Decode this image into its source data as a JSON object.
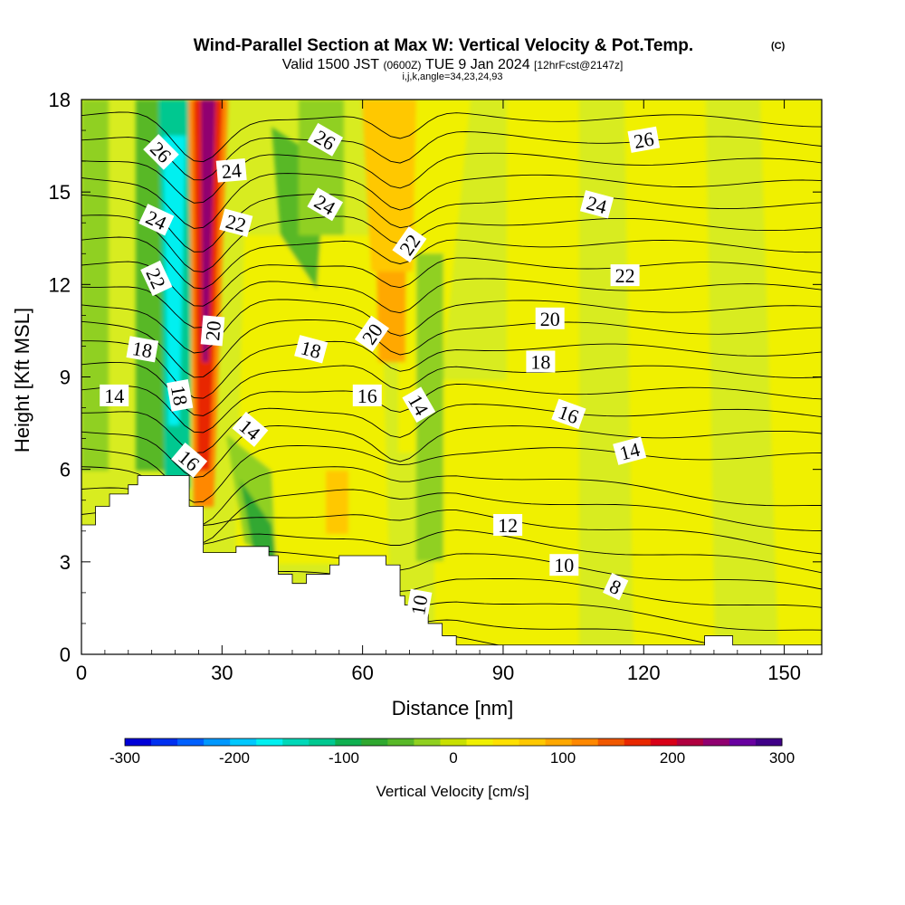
{
  "header": {
    "title_main": "Wind-Parallel Section at Max W: Vertical Velocity & Pot.Temp.",
    "title_badge": "(C)",
    "valid_prefix": "Valid 1500 JST",
    "valid_utc": "(0600Z)",
    "valid_date": "TUE 9 Jan 2024",
    "valid_fcst": "[12hrFcst@2147z]",
    "indices": "i,j,k,angle=34,23,24,93"
  },
  "colorbar": {
    "label": "Vertical Velocity [cm/s]",
    "tick_labels": [
      "-300",
      "-200",
      "-100",
      "0",
      "100",
      "200",
      "300"
    ],
    "tick_values": [
      -300,
      -200,
      -100,
      0,
      100,
      200,
      300
    ],
    "range": [
      -300,
      300
    ],
    "colors": [
      "#0000d8",
      "#0030f0",
      "#0060ff",
      "#0098ff",
      "#00c8ff",
      "#00f0f0",
      "#00d8b8",
      "#00c890",
      "#10b050",
      "#30a830",
      "#58b828",
      "#90d020",
      "#c8e000",
      "#f0f000",
      "#ffe000",
      "#ffc800",
      "#ffa800",
      "#ff8800",
      "#f05800",
      "#e82800",
      "#d80018",
      "#b00040",
      "#900070",
      "#6800a0",
      "#400088"
    ]
  },
  "chart_data": {
    "type": "heatmap",
    "title": "Wind-Parallel Section at Max W: Vertical Velocity & Pot.Temp.",
    "xlabel": "Distance [nm]",
    "ylabel": "Height [Kft MSL]",
    "xlim": [
      0,
      158
    ],
    "ylim": [
      0,
      18
    ],
    "x_ticks": [
      0,
      30,
      60,
      90,
      120,
      150
    ],
    "y_ticks": [
      0,
      3,
      6,
      9,
      12,
      15,
      18
    ],
    "x_tick_labels": [
      "0",
      "30",
      "60",
      "90",
      "120",
      "150"
    ],
    "y_tick_labels": [
      "0",
      "3",
      "6",
      "9",
      "12",
      "15",
      "18"
    ],
    "field": "Vertical Velocity [cm/s]",
    "contour_field": "Potential Temperature",
    "terrain_profile": {
      "x": [
        0,
        3,
        3,
        6,
        6,
        9,
        9,
        10,
        10,
        12,
        12,
        23,
        23,
        25,
        25,
        26,
        26,
        29,
        29,
        33,
        33,
        40,
        40,
        42,
        42,
        44,
        44,
        45,
        45,
        48,
        48,
        51,
        51,
        53,
        53,
        55,
        55,
        56,
        56,
        63,
        63,
        65,
        65,
        68,
        68,
        69,
        69,
        72,
        72,
        74,
        74,
        77,
        77,
        80,
        80,
        84,
        84,
        133,
        133,
        139,
        139,
        158
      ],
      "y": [
        4.2,
        4.2,
        4.8,
        4.8,
        5.2,
        5.2,
        5.2,
        5.2,
        5.5,
        5.5,
        5.8,
        5.8,
        4.8,
        4.8,
        4.8,
        4.8,
        3.3,
        3.3,
        3.3,
        3.3,
        3.5,
        3.5,
        3.2,
        3.2,
        2.6,
        2.6,
        2.6,
        2.6,
        2.3,
        2.3,
        2.6,
        2.6,
        2.6,
        2.6,
        2.9,
        2.9,
        3.2,
        3.2,
        3.2,
        3.2,
        3.2,
        3.2,
        2.9,
        2.9,
        1.9,
        1.9,
        1.6,
        1.6,
        1.3,
        1.3,
        1.0,
        1.0,
        0.6,
        0.6,
        0.3,
        0.3,
        0.3,
        0.3,
        0.6,
        0.6,
        0.3,
        0.3
      ]
    },
    "contour_labels": [
      {
        "text": "26",
        "x": 17,
        "y": 16.3,
        "angle": 45
      },
      {
        "text": "26",
        "x": 52,
        "y": 16.7,
        "angle": 30
      },
      {
        "text": "26",
        "x": 120,
        "y": 16.7,
        "angle": -10
      },
      {
        "text": "24",
        "x": 32,
        "y": 15.7,
        "angle": -5
      },
      {
        "text": "24",
        "x": 16,
        "y": 14.1,
        "angle": 25
      },
      {
        "text": "24",
        "x": 52,
        "y": 14.6,
        "angle": 30
      },
      {
        "text": "24",
        "x": 110,
        "y": 14.6,
        "angle": 15
      },
      {
        "text": "22",
        "x": 33,
        "y": 14.0,
        "angle": 15
      },
      {
        "text": "22",
        "x": 70,
        "y": 13.3,
        "angle": -55
      },
      {
        "text": "22",
        "x": 16,
        "y": 12.2,
        "angle": 65
      },
      {
        "text": "22",
        "x": 116,
        "y": 12.3,
        "angle": 0
      },
      {
        "text": "20",
        "x": 28,
        "y": 10.5,
        "angle": -85
      },
      {
        "text": "20",
        "x": 62,
        "y": 10.4,
        "angle": -55
      },
      {
        "text": "20",
        "x": 100,
        "y": 10.9,
        "angle": 0
      },
      {
        "text": "18",
        "x": 13,
        "y": 9.9,
        "angle": 10
      },
      {
        "text": "18",
        "x": 49,
        "y": 9.9,
        "angle": 15
      },
      {
        "text": "18",
        "x": 98,
        "y": 9.5,
        "angle": 0
      },
      {
        "text": "18",
        "x": 21,
        "y": 8.4,
        "angle": 80
      },
      {
        "text": "16",
        "x": 61,
        "y": 8.4,
        "angle": 0
      },
      {
        "text": "16",
        "x": 104,
        "y": 7.8,
        "angle": 20
      },
      {
        "text": "16",
        "x": 23,
        "y": 6.3,
        "angle": 40
      },
      {
        "text": "14",
        "x": 7,
        "y": 8.4,
        "angle": 0
      },
      {
        "text": "14",
        "x": 36,
        "y": 7.3,
        "angle": 40
      },
      {
        "text": "14",
        "x": 72,
        "y": 8.1,
        "angle": 60
      },
      {
        "text": "14",
        "x": 117,
        "y": 6.6,
        "angle": -15
      },
      {
        "text": "12",
        "x": 91,
        "y": 4.2,
        "angle": 0
      },
      {
        "text": "10",
        "x": 103,
        "y": 2.9,
        "angle": 0
      },
      {
        "text": "10",
        "x": 72,
        "y": 1.6,
        "angle": -80
      },
      {
        "text": "8",
        "x": 114,
        "y": 2.2,
        "angle": 25
      }
    ]
  }
}
